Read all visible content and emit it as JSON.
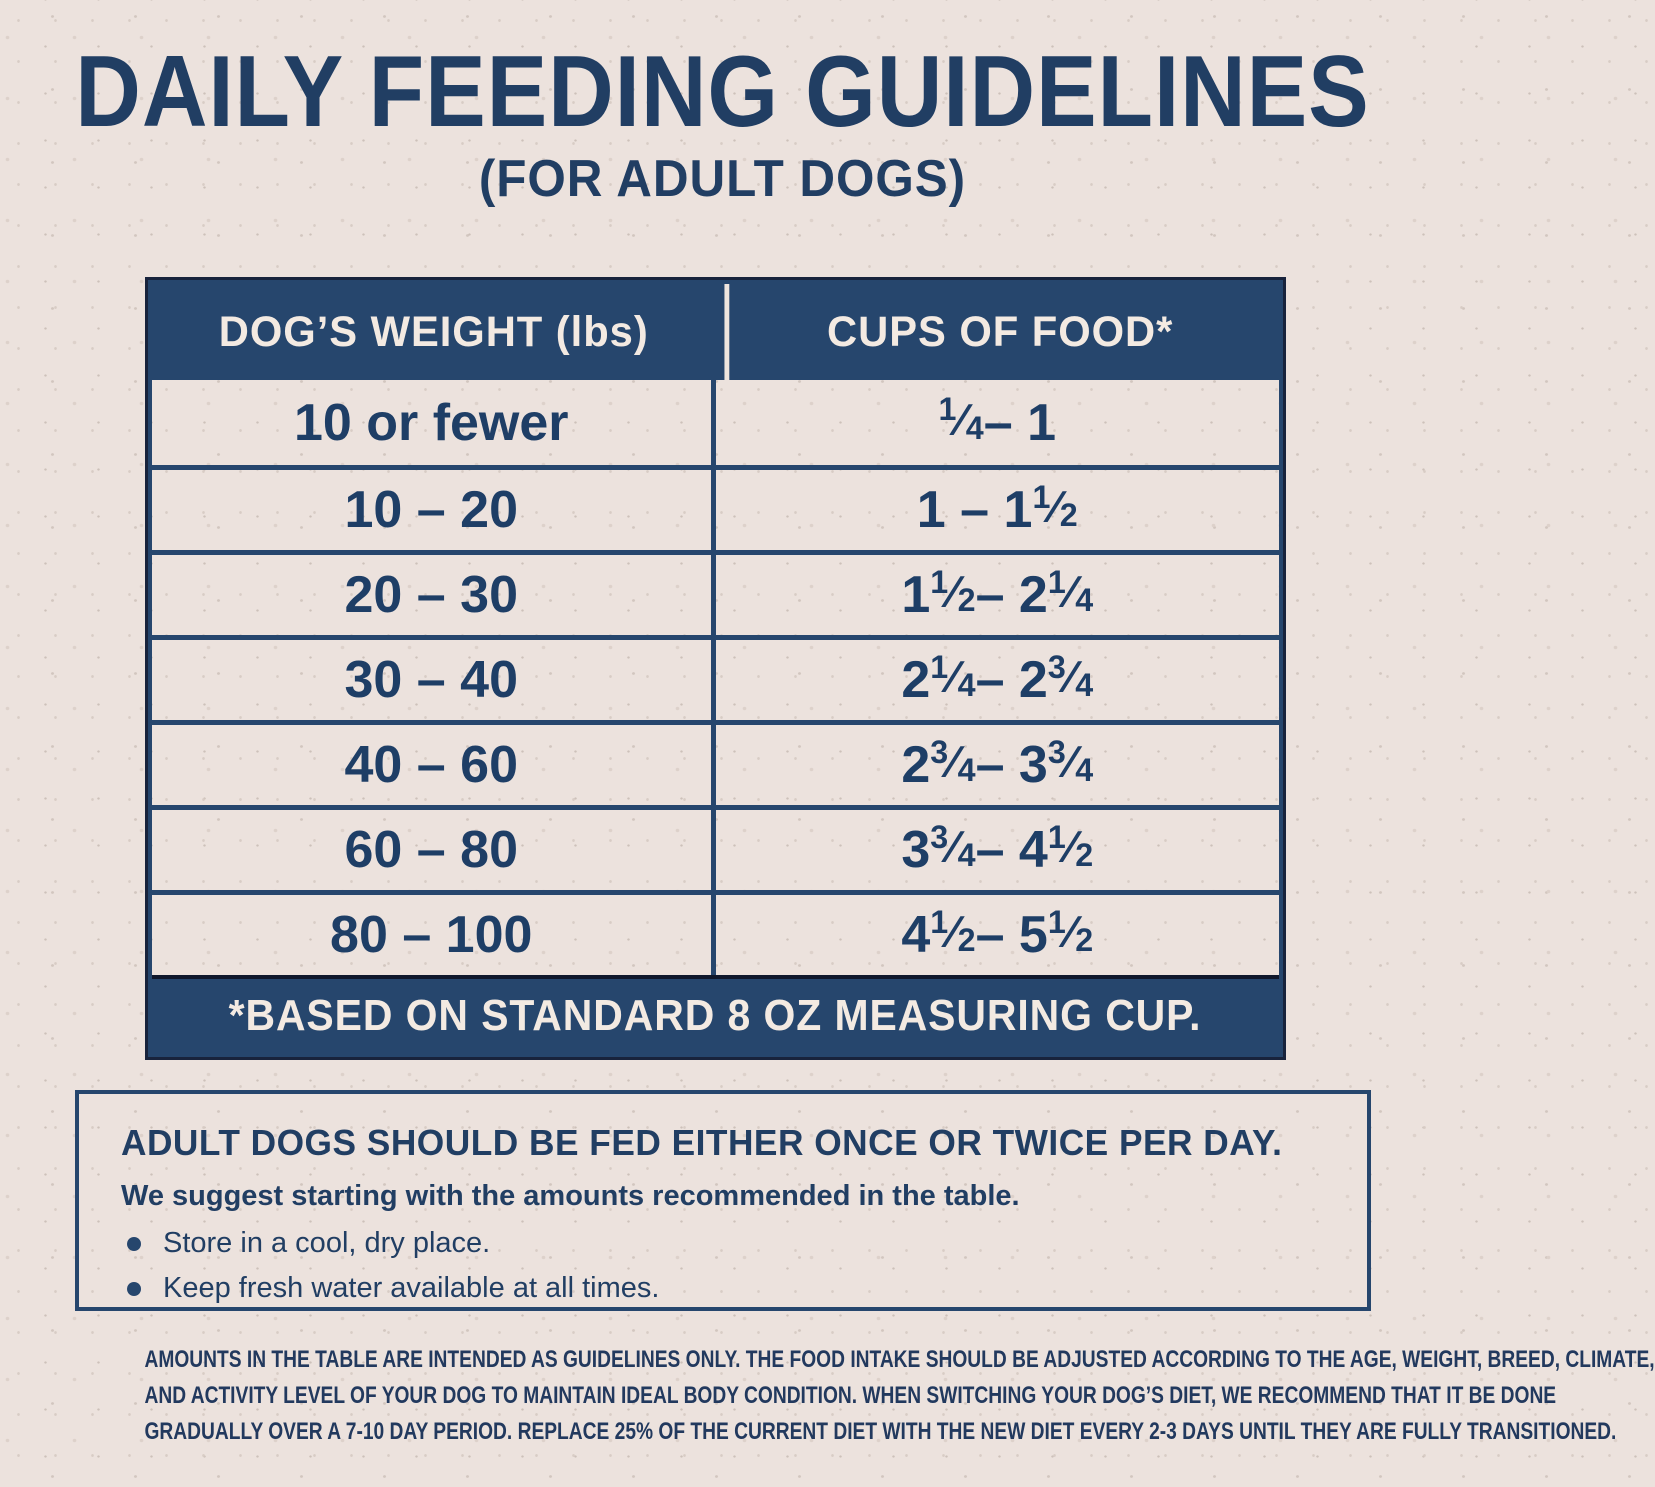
{
  "title": "DAILY FEEDING GUIDELINES",
  "subtitle": "(FOR ADULT DOGS)",
  "table": {
    "headers": {
      "weight": "DOG’S WEIGHT (lbs)",
      "cups": "CUPS OF FOOD*"
    },
    "rows": [
      {
        "weight": "10 or fewer",
        "cups": "1/4 – 1"
      },
      {
        "weight": "10 – 20",
        "cups": "1 – 1 1/2"
      },
      {
        "weight": "20 – 30",
        "cups": "1 1/2 – 2 1/4"
      },
      {
        "weight": "30 – 40",
        "cups": "2 1/4 – 2 3/4"
      },
      {
        "weight": "40 – 60",
        "cups": "2 3/4 – 3 3/4"
      },
      {
        "weight": "60 – 80",
        "cups": "3 3/4 – 4 1/2"
      },
      {
        "weight": "80 – 100",
        "cups": "4 1/2 – 5 1/2"
      }
    ],
    "footnote": "*BASED ON STANDARD 8 OZ MEASURING CUP."
  },
  "info_box": {
    "heading": "ADULT DOGS SHOULD BE FED EITHER ONCE OR TWICE PER DAY.",
    "subheading": "We suggest starting with the amounts recommended in the table.",
    "bullets": [
      "Store in a cool, dry place.",
      "Keep fresh water available at all times."
    ]
  },
  "disclaimer": {
    "lines": [
      "AMOUNTS IN THE TABLE ARE INTENDED AS GUIDELINES ONLY. THE FOOD INTAKE SHOULD BE ADJUSTED ACCORDING TO THE AGE, WEIGHT, BREED, CLIMATE,",
      "AND ACTIVITY LEVEL OF YOUR DOG TO MAINTAIN IDEAL BODY CONDITION. WHEN SWITCHING YOUR DOG’S DIET, WE RECOMMEND THAT IT BE DONE",
      "GRADUALLY OVER A 7-10 DAY PERIOD. REPLACE 25% OF THE CURRENT DIET WITH THE NEW DIET EVERY 2-3 DAYS UNTIL THEY ARE FULLY TRANSITIONED."
    ]
  },
  "colors": {
    "navy": "#26466d",
    "text_navy": "#1e3e66",
    "cream": "#f3eae2",
    "background": "#ece2dd"
  }
}
